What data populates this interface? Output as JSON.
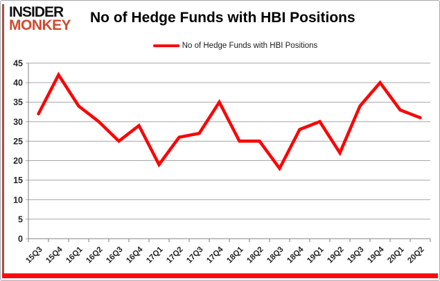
{
  "brand": {
    "line1": "INSIDER",
    "line2": "MONKEY"
  },
  "title": "No of Hedge Funds with HBI Positions",
  "legend": {
    "label": "No of Hedge Funds with HBI Positions"
  },
  "colors": {
    "line": "#fb0505",
    "brand_orange": "#d2492e",
    "bottom_bar": "#fb0a14"
  },
  "chart_data": {
    "type": "line",
    "title": "No of Hedge Funds with HBI Positions",
    "categories": [
      "15Q3",
      "15Q4",
      "16Q1",
      "16Q2",
      "16Q3",
      "16Q4",
      "17Q1",
      "17Q2",
      "17Q3",
      "17Q4",
      "18Q1",
      "18Q2",
      "18Q3",
      "18Q4",
      "19Q1",
      "19Q2",
      "19Q3",
      "19Q4",
      "20Q1",
      "20Q2"
    ],
    "values": [
      32,
      42,
      34,
      30,
      25,
      29,
      19,
      26,
      27,
      35,
      25,
      25,
      18,
      28,
      30,
      22,
      34,
      40,
      33,
      31
    ],
    "series_name": "No of Hedge Funds with HBI Positions",
    "xlabel": "",
    "ylabel": "",
    "ylim": [
      0,
      45
    ],
    "ytick_step": 5,
    "grid": true,
    "legend_position": "top"
  }
}
